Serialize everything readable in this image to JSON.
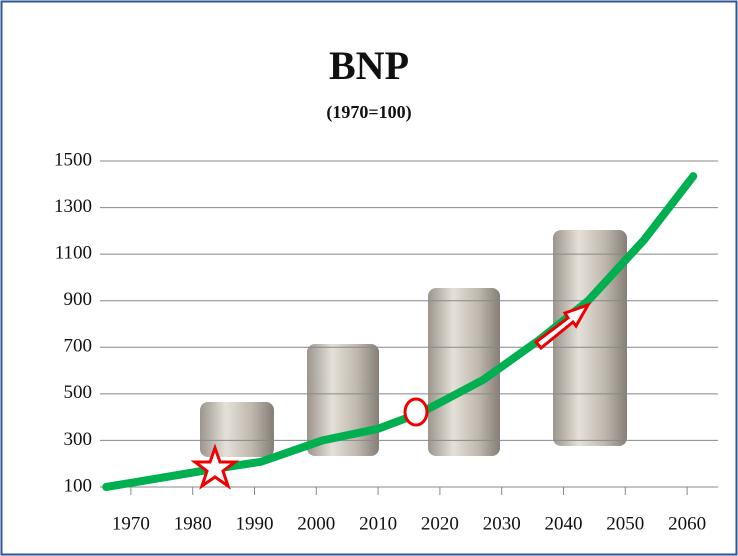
{
  "chart_data": {
    "type": "line",
    "title": "BNP",
    "subtitle": "(1970=100)",
    "x": [
      1966,
      1984,
      1991,
      2001,
      2010,
      2017,
      2027,
      2036,
      2044,
      2053,
      2061
    ],
    "series": [
      {
        "color": "#00b050",
        "values": [
          100,
          180,
          208,
          300,
          350,
          420,
          560,
          730,
          900,
          1160,
          1435
        ]
      }
    ],
    "xlim": [
      1965,
      2065
    ],
    "xticks": [
      1970,
      1980,
      1990,
      2000,
      2010,
      2020,
      2030,
      2040,
      2050,
      2060
    ],
    "ylim": [
      100,
      1500
    ],
    "yticks": [
      100,
      300,
      500,
      700,
      900,
      1100,
      1300,
      1500
    ],
    "grid": true
  }
}
